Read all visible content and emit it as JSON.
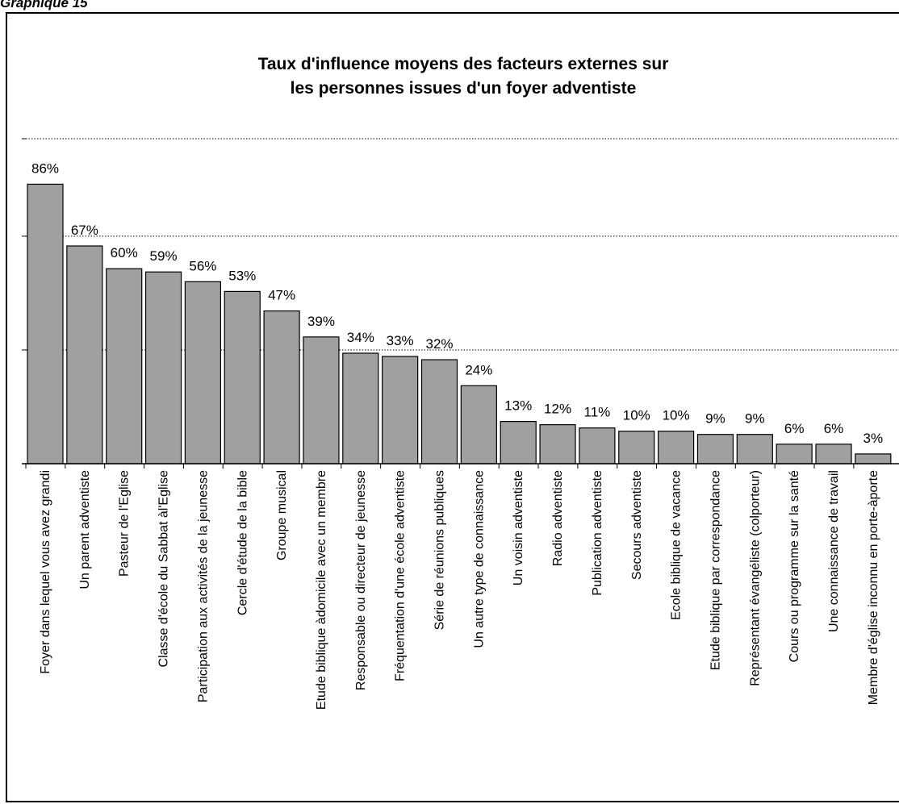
{
  "caption": "Graphique 15",
  "chart_data": {
    "type": "bar",
    "title_lines": [
      "Taux d'influence moyens des facteurs externes sur",
      "les personnes issues d'un foyer adventiste"
    ],
    "categories": [
      "Foyer dans lequel vous avez grandi",
      "Un parent adventiste",
      "Pasteur de l'Eglise",
      "Classe d'école du Sabbat àl'Eglise",
      "Participation aux activités de la jeunesse",
      "Cercle d'étude de la bible",
      "Groupe musical",
      "Etude biblique àdomicile avec un membre",
      "Responsable ou directeur de jeunesse",
      "Fréquentation d'une école adventiste",
      "Série de réunions publiques",
      "Un autre type de connaissance",
      "Un voisin adventiste",
      "Radio adventiste",
      "Publication adventiste",
      "Secours adventiste",
      "Ecole biblique de vacance",
      "Etude biblique par correspondance",
      "Représentant évangéliste (colporteur)",
      "Cours ou programme sur la santé",
      "Une connaissance de travail",
      "Membre d'église inconnu en porte-àporte"
    ],
    "values": [
      86,
      67,
      60,
      59,
      56,
      53,
      47,
      39,
      34,
      33,
      32,
      24,
      13,
      12,
      11,
      10,
      10,
      9,
      9,
      6,
      6,
      3
    ],
    "value_labels": [
      "86%",
      "67%",
      "60%",
      "59%",
      "56%",
      "53%",
      "47%",
      "39%",
      "34%",
      "33%",
      "32%",
      "24%",
      "13%",
      "12%",
      "11%",
      "10%",
      "10%",
      "9%",
      "9%",
      "6%",
      "6%",
      "3%"
    ],
    "ylim": [
      0,
      100
    ],
    "grid": true,
    "bar_color": "#a0a0a0",
    "bar_edge_color": "#000000",
    "grid_color": "#000000"
  }
}
